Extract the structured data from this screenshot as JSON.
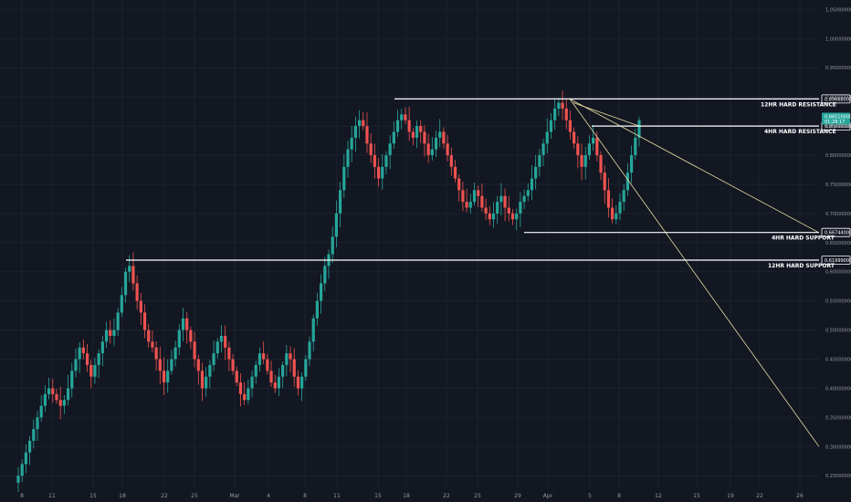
{
  "chart_data": {
    "type": "candlestick",
    "title": "",
    "xlabel": "",
    "ylabel": "",
    "grid": true,
    "colors": {
      "background": "#131722",
      "grid": "#1e222d",
      "up": "#26a69a",
      "down": "#ef5350",
      "level_line": "#ffffff",
      "trend_line": "#e8dca0",
      "axis_text": "#9598a1",
      "current_price_bg": "#26a69a"
    },
    "ylim": [
      0.23,
      1.06
    ],
    "y_ticks": [
      "1.05000000",
      "1.00000000",
      "0.95000000",
      "0.90000000",
      "0.85000000",
      "0.80000000",
      "0.75000000",
      "0.70000000",
      "0.65000000",
      "0.60000000",
      "0.55000000",
      "0.50000000",
      "0.45000000",
      "0.40000000",
      "0.35000000",
      "0.30000000",
      "0.25000000"
    ],
    "x_ticks": [
      "8",
      "11",
      "15",
      "18",
      "22",
      "25",
      "Mar",
      "4",
      "8",
      "11",
      "15",
      "18",
      "22",
      "25",
      "29",
      "Apr",
      "5",
      "8",
      "12",
      "15",
      "19",
      "22",
      "26"
    ],
    "levels": [
      {
        "label": "12HR HARD RESISTANCE",
        "value": 0.8966,
        "tag": "0.89668000"
      },
      {
        "label": "4HR HARD RESISTANCE",
        "value": 0.85,
        "tag": "0.85000000"
      },
      {
        "label": "4HR HARD SUPPORT",
        "value": 0.66744,
        "tag": "0.66744000"
      },
      {
        "label": "12HR HARD SUPPORT",
        "value": 0.61999,
        "tag": "0.61999000"
      }
    ],
    "current_price": {
      "value": 0.8651,
      "label": "0.86510000",
      "sublabel": "01:28:17"
    },
    "trend_lines": [
      {
        "from": {
          "x": "Apr 2",
          "y": 0.8966
        },
        "to": {
          "x": "Apr 28",
          "y": 0.667
        }
      },
      {
        "from": {
          "x": "Apr 2",
          "y": 0.8966
        },
        "to": {
          "x": "Apr 28",
          "y": 0.3
        }
      }
    ],
    "series": [
      {
        "type": "close",
        "x_start": "Feb 6",
        "x_step_hours": 12,
        "values": [
          0.25,
          0.27,
          0.29,
          0.31,
          0.33,
          0.35,
          0.37,
          0.39,
          0.4,
          0.39,
          0.38,
          0.37,
          0.38,
          0.4,
          0.43,
          0.45,
          0.47,
          0.46,
          0.44,
          0.42,
          0.44,
          0.46,
          0.48,
          0.5,
          0.49,
          0.5,
          0.53,
          0.56,
          0.6,
          0.61,
          0.58,
          0.55,
          0.53,
          0.5,
          0.48,
          0.47,
          0.45,
          0.43,
          0.41,
          0.43,
          0.45,
          0.47,
          0.5,
          0.52,
          0.5,
          0.48,
          0.45,
          0.43,
          0.4,
          0.42,
          0.44,
          0.46,
          0.48,
          0.49,
          0.47,
          0.45,
          0.43,
          0.41,
          0.39,
          0.38,
          0.4,
          0.42,
          0.44,
          0.46,
          0.45,
          0.43,
          0.41,
          0.4,
          0.42,
          0.44,
          0.46,
          0.45,
          0.42,
          0.4,
          0.42,
          0.45,
          0.48,
          0.52,
          0.55,
          0.58,
          0.61,
          0.63,
          0.66,
          0.7,
          0.74,
          0.78,
          0.81,
          0.83,
          0.85,
          0.86,
          0.85,
          0.82,
          0.8,
          0.78,
          0.76,
          0.78,
          0.8,
          0.82,
          0.84,
          0.86,
          0.87,
          0.86,
          0.84,
          0.83,
          0.85,
          0.84,
          0.82,
          0.8,
          0.81,
          0.83,
          0.84,
          0.82,
          0.8,
          0.78,
          0.76,
          0.74,
          0.72,
          0.71,
          0.72,
          0.74,
          0.73,
          0.71,
          0.7,
          0.69,
          0.7,
          0.72,
          0.73,
          0.71,
          0.7,
          0.69,
          0.7,
          0.72,
          0.73,
          0.74,
          0.76,
          0.78,
          0.8,
          0.82,
          0.84,
          0.86,
          0.88,
          0.89,
          0.88,
          0.86,
          0.84,
          0.82,
          0.8,
          0.78,
          0.8,
          0.82,
          0.83,
          0.8,
          0.77,
          0.74,
          0.71,
          0.69,
          0.7,
          0.72,
          0.74,
          0.77,
          0.8,
          0.83,
          0.86
        ]
      }
    ]
  }
}
